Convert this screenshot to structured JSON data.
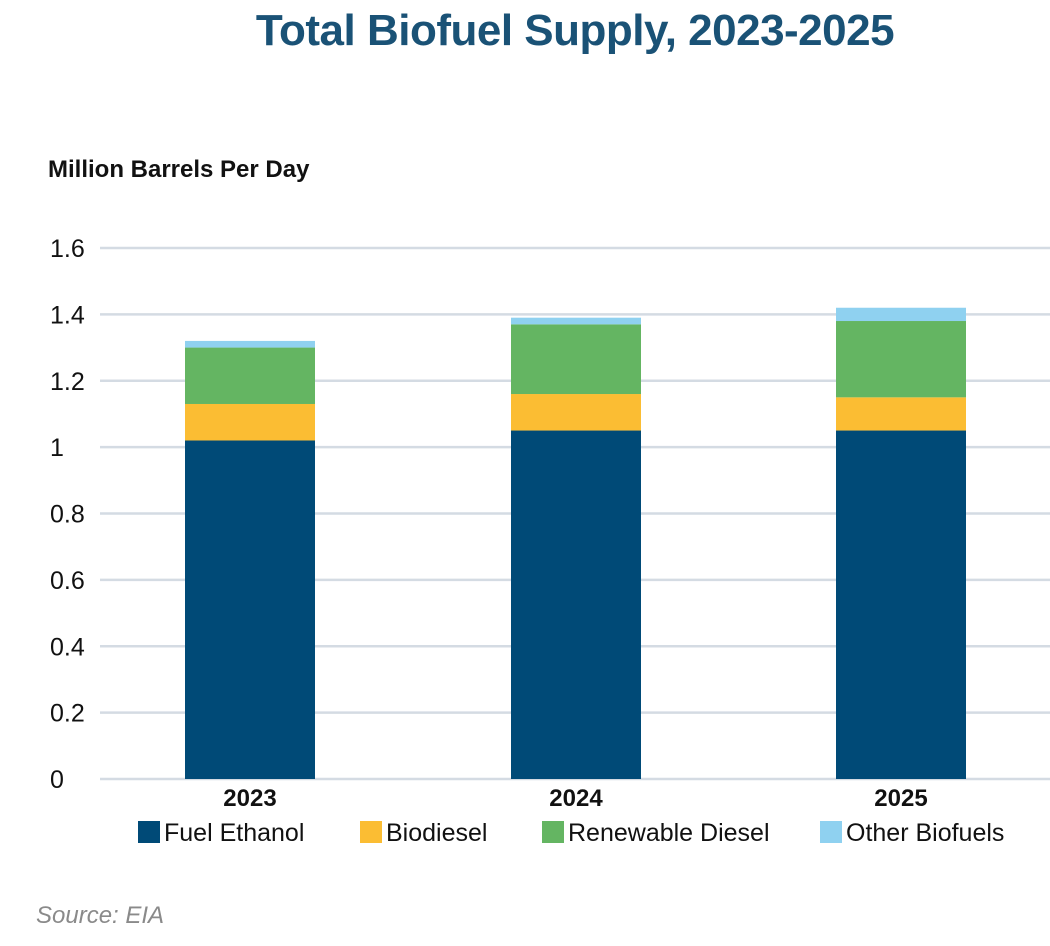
{
  "chart_data": {
    "type": "bar",
    "stacked": true,
    "title": "Total Biofuel Supply, 2023-2025",
    "ylabel": "Million Barrels Per Day",
    "xlabel": "",
    "categories": [
      "2023",
      "2024",
      "2025"
    ],
    "ylim": [
      0,
      1.6
    ],
    "yticks": [
      0,
      0.2,
      0.4,
      0.6,
      0.8,
      1,
      1.2,
      1.4,
      1.6
    ],
    "ytick_labels": [
      "0",
      "0.2",
      "0.4",
      "0.6",
      "0.8",
      "1",
      "1.2",
      "1.4",
      "1.6"
    ],
    "grid": true,
    "legend_position": "bottom",
    "series": [
      {
        "name": "Fuel Ethanol",
        "color": "#004a77",
        "values": [
          1.02,
          1.05,
          1.05
        ]
      },
      {
        "name": "Biodiesel",
        "color": "#fbbd33",
        "values": [
          0.11,
          0.11,
          0.1
        ]
      },
      {
        "name": "Renewable Diesel",
        "color": "#64b562",
        "values": [
          0.17,
          0.21,
          0.23
        ]
      },
      {
        "name": "Other Biofuels",
        "color": "#8fd1f0",
        "values": [
          0.02,
          0.02,
          0.04
        ]
      }
    ]
  },
  "source": "Source: EIA"
}
